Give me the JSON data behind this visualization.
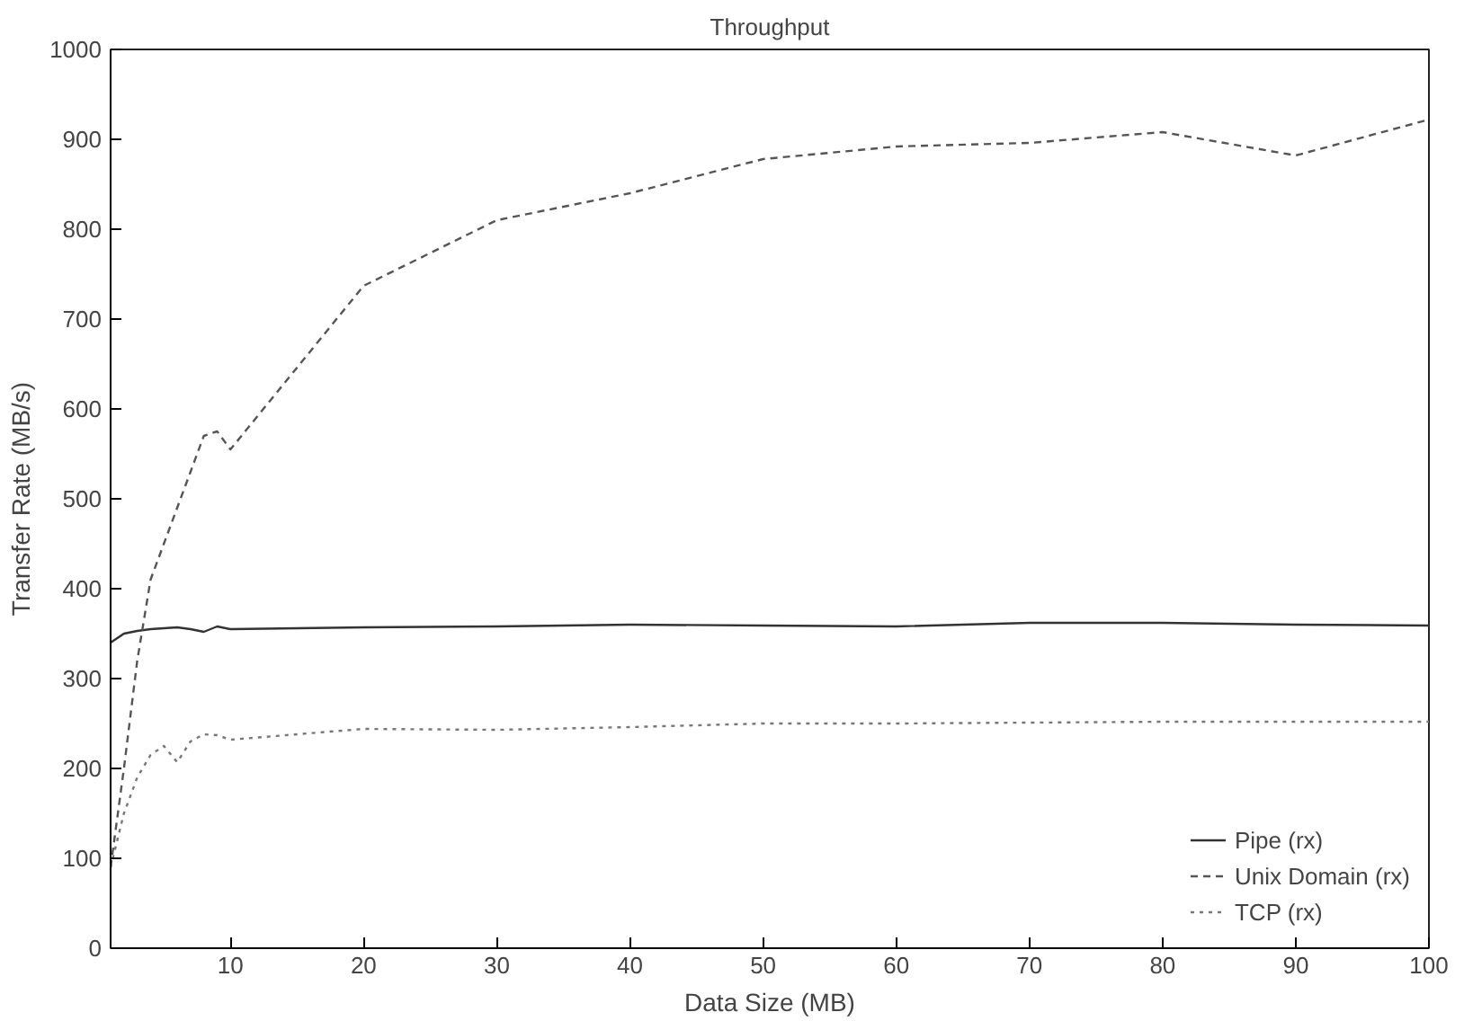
{
  "chart_data": {
    "type": "line",
    "title": "Throughput",
    "xlabel": "Data Size (MB)",
    "ylabel": "Transfer Rate (MB/s)",
    "x": [
      1,
      2,
      3,
      4,
      5,
      6,
      7,
      8,
      9,
      10,
      20,
      30,
      40,
      50,
      60,
      70,
      80,
      90,
      100
    ],
    "series": [
      {
        "name": "Pipe (rx)",
        "color": "#333333",
        "line_style": "solid",
        "values": [
          340,
          350,
          353,
          355,
          356,
          357,
          355,
          352,
          358,
          355,
          357,
          358,
          360,
          359,
          358,
          362,
          362,
          360,
          359
        ]
      },
      {
        "name": "Unix Domain (rx)",
        "color": "#555555",
        "line_style": "dashed",
        "values": [
          90,
          200,
          320,
          410,
          450,
          490,
          530,
          570,
          575,
          555,
          737,
          810,
          840,
          878,
          892,
          896,
          908,
          882,
          922
        ]
      },
      {
        "name": "TCP (rx)",
        "color": "#777777",
        "line_style": "dotted",
        "values": [
          90,
          150,
          190,
          215,
          225,
          207,
          230,
          238,
          237,
          232,
          244,
          243,
          246,
          250,
          250,
          251,
          252,
          252,
          252
        ]
      }
    ],
    "xlim": [
      1,
      100
    ],
    "xticks": [
      10,
      20,
      30,
      40,
      50,
      60,
      70,
      80,
      90,
      100
    ],
    "ylim": [
      0,
      1000
    ],
    "yticks": [
      0,
      100,
      200,
      300,
      400,
      500,
      600,
      700,
      800,
      900,
      1000
    ],
    "grid": false,
    "legend": "bottom right"
  }
}
